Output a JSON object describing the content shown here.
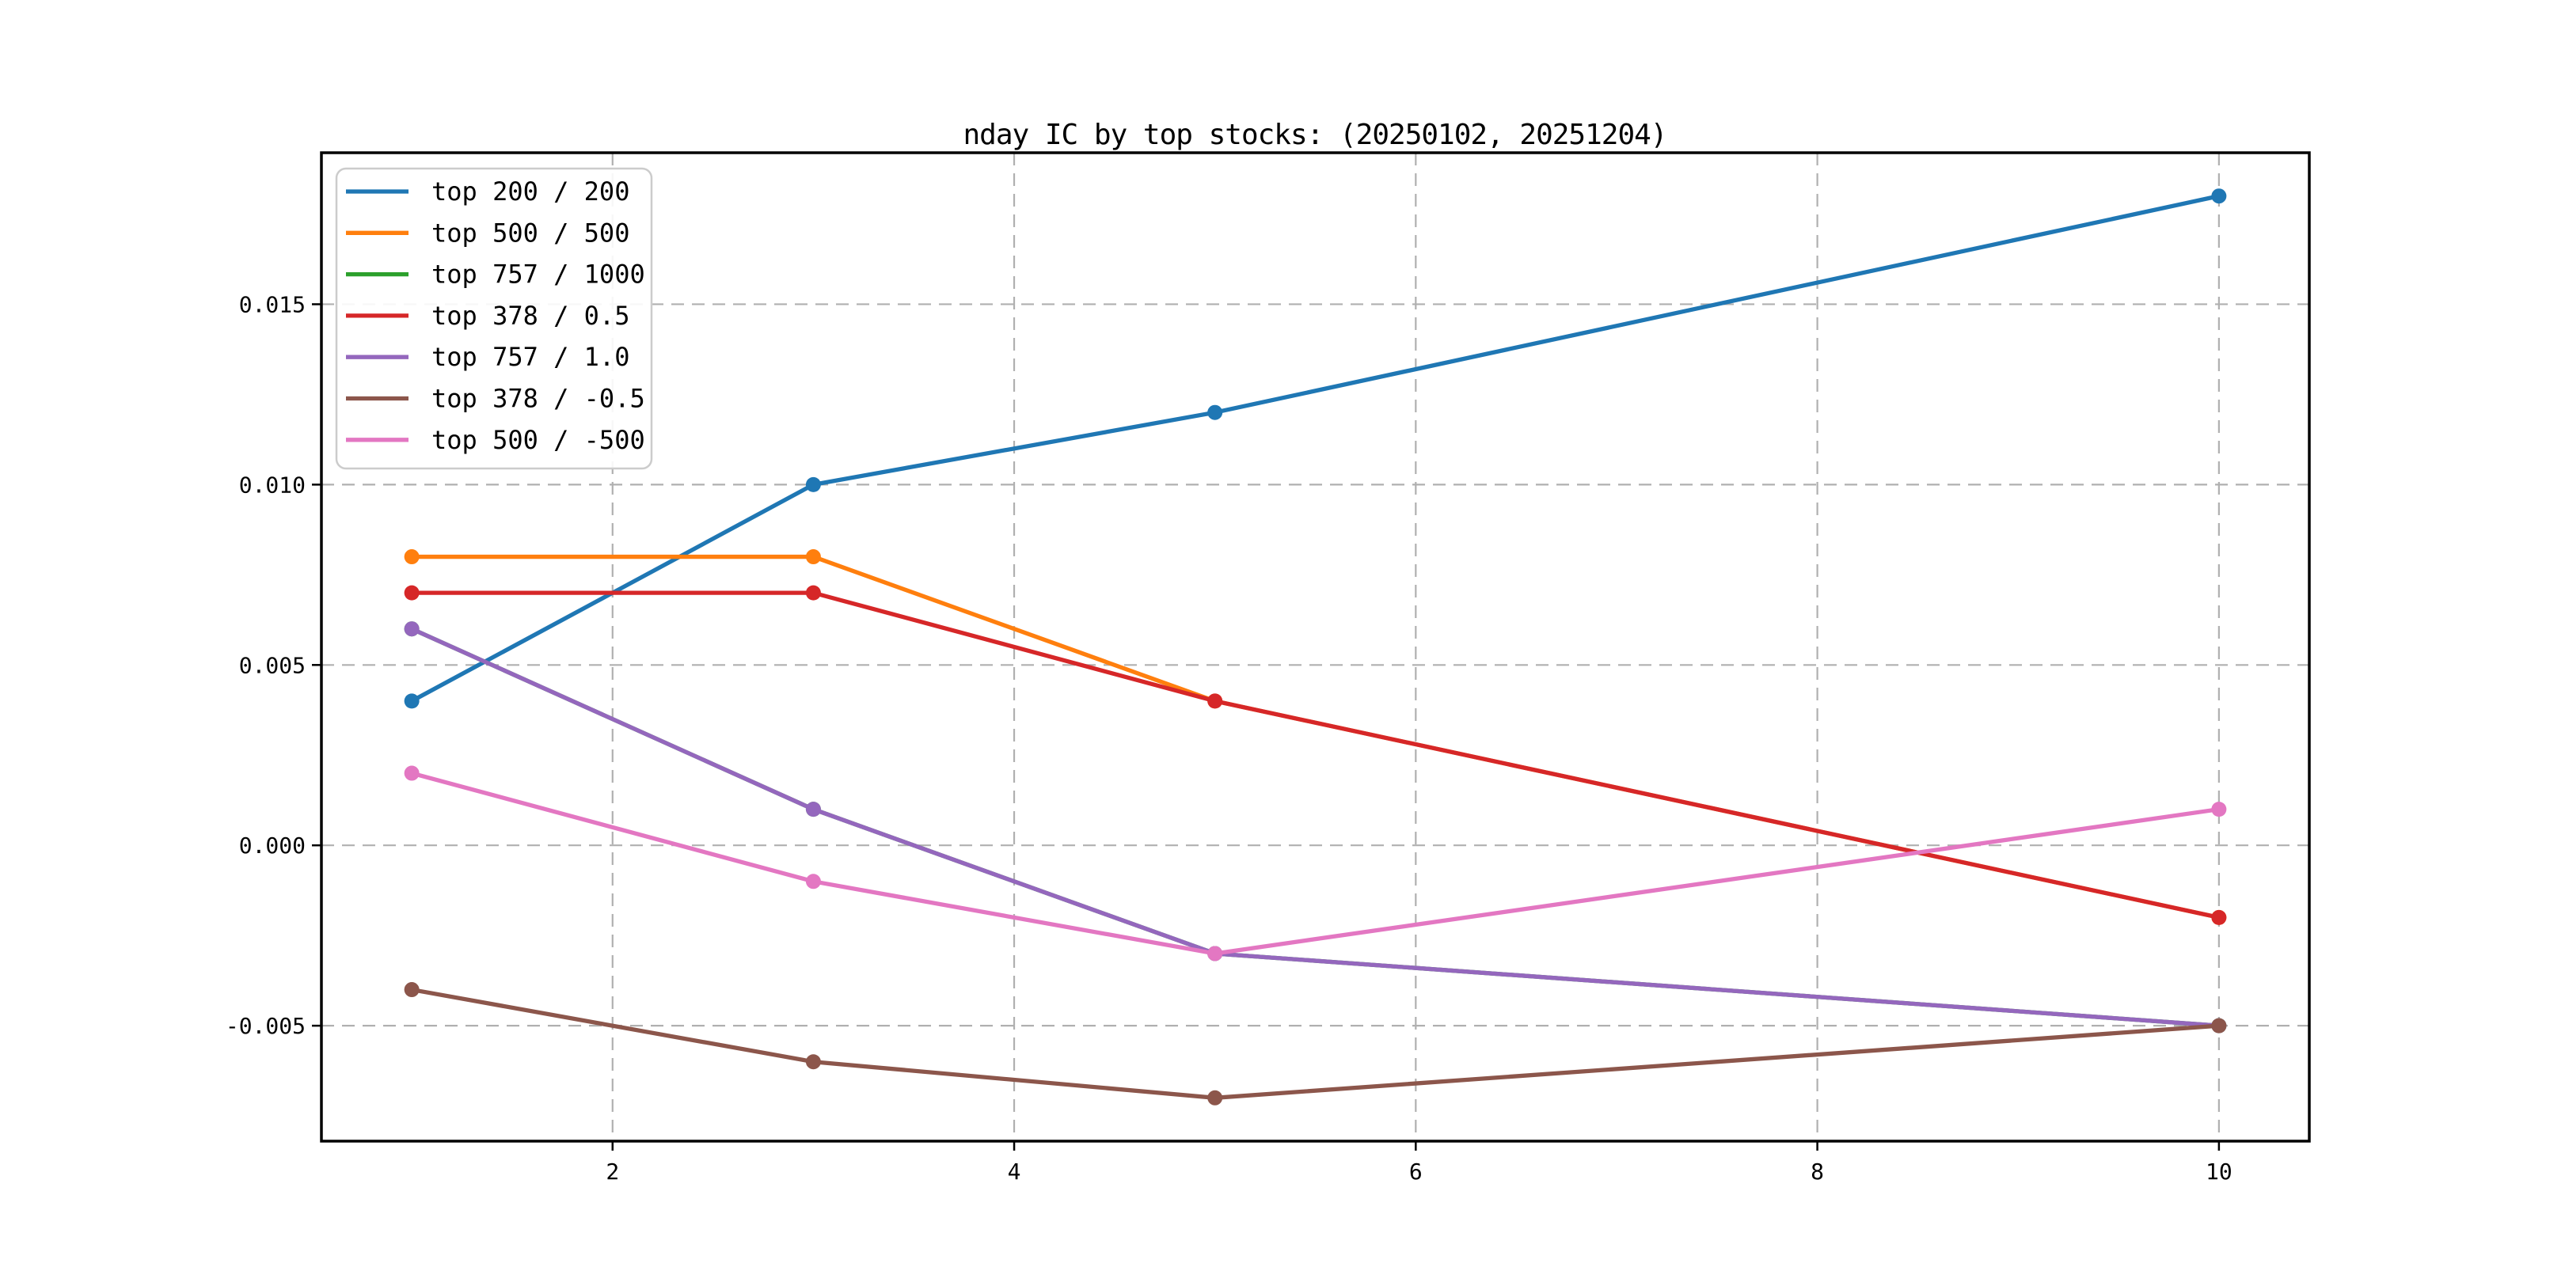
{
  "figure": {
    "background": "#ffffff",
    "plot_background": "#ffffff",
    "spine_color": "#000000",
    "grid_color": "#b0b0b0",
    "legend_border_color": "#cccccc"
  },
  "chart_data": {
    "type": "line",
    "title": "nday IC by top stocks: (20250102, 20251204)",
    "xlabel": "",
    "ylabel": "",
    "x": [
      1,
      3,
      5,
      10
    ],
    "series": [
      {
        "name": "top 200 / 200",
        "color": "#1f77b4",
        "values": [
          0.004,
          0.01,
          0.012,
          0.018
        ]
      },
      {
        "name": "top 500 / 500",
        "color": "#ff7f0e",
        "values": [
          0.008,
          0.008,
          0.004,
          -0.002
        ]
      },
      {
        "name": "top 757 / 1000",
        "color": "#2ca02c",
        "values": [
          0.006,
          0.001,
          -0.003,
          -0.005
        ],
        "note": "fully occluded by 'top 757 / 1.0' line in the pixels"
      },
      {
        "name": "top 378 / 0.5",
        "color": "#d62728",
        "values": [
          0.007,
          0.007,
          0.004,
          -0.002
        ]
      },
      {
        "name": "top 757 / 1.0",
        "color": "#9467bd",
        "values": [
          0.006,
          0.001,
          -0.003,
          -0.005
        ]
      },
      {
        "name": "top 378 / -0.5",
        "color": "#8c564b",
        "values": [
          -0.004,
          -0.006,
          -0.007,
          -0.005
        ]
      },
      {
        "name": "top 500 / -500",
        "color": "#e377c2",
        "values": [
          0.002,
          -0.001,
          -0.003,
          0.001
        ]
      }
    ],
    "xlim": [
      0.55,
      10.45
    ],
    "ylim": [
      -0.0082,
      0.0192
    ],
    "xticks": [
      2,
      4,
      6,
      8,
      10
    ],
    "xtick_labels": [
      "2",
      "4",
      "6",
      "8",
      "10"
    ],
    "yticks": [
      -0.005,
      0.0,
      0.005,
      0.01,
      0.015
    ],
    "ytick_labels": [
      "-0.005",
      "0.000",
      "0.005",
      "0.010",
      "0.015"
    ],
    "grid": true,
    "grid_style": "dashed",
    "legend_position": "upper left",
    "marker": "o"
  }
}
